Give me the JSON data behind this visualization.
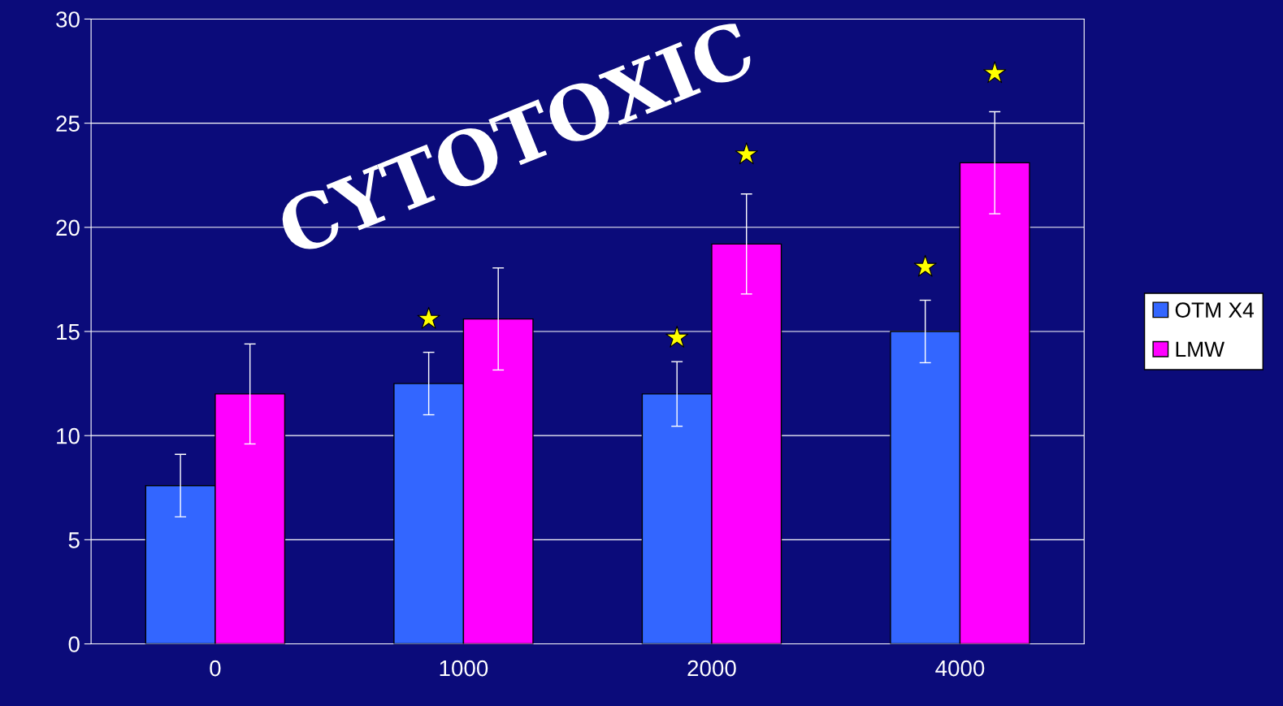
{
  "chart_data": {
    "type": "bar",
    "categories": [
      "0",
      "1000",
      "2000",
      "4000"
    ],
    "series": [
      {
        "name": "OTM X4",
        "color": "#3366ff",
        "values": [
          7.6,
          12.5,
          12.0,
          15.0
        ],
        "errors": [
          1.5,
          1.5,
          1.55,
          1.5
        ]
      },
      {
        "name": "LMW",
        "color": "#ff00ff",
        "values": [
          12.0,
          15.6,
          19.2,
          23.1
        ],
        "errors": [
          2.4,
          2.45,
          2.4,
          2.45
        ]
      },
      {
        "type": "scatter",
        "color": "#ffff00",
        "marker": "star",
        "values": [
          null,
          15.6,
          14.7,
          18.1
        ]
      },
      {
        "type": "scatter",
        "color": "#ffff00",
        "marker": "star",
        "values": [
          null,
          null,
          23.5,
          27.4
        ]
      }
    ],
    "ylim": [
      0,
      30
    ],
    "yticks": [
      0,
      5,
      10,
      15,
      20,
      25,
      30
    ],
    "grid": "y",
    "legend": "right",
    "annotations": [
      "CYTOTOXIC"
    ]
  }
}
